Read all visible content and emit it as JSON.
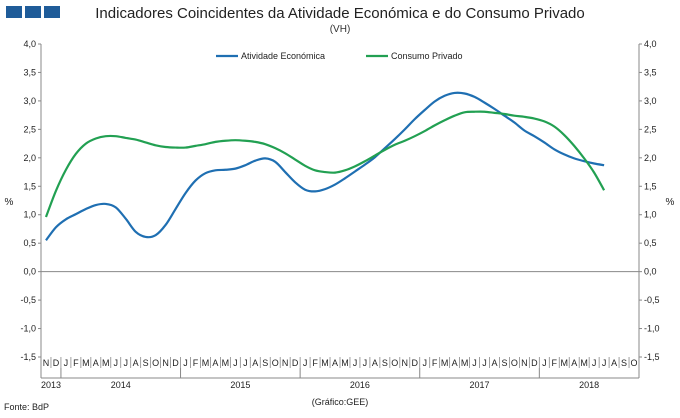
{
  "chart_data": {
    "type": "line",
    "title": "Indicadores Coincidentes da Atividade Económica e do Consumo Privado",
    "subtitle": "(VH)",
    "ylabel_left": "%",
    "ylabel_right": "%",
    "ylim": [
      -1.5,
      4.0
    ],
    "yticks": [
      "4,0",
      "3,5",
      "3,0",
      "2,5",
      "2,0",
      "1,5",
      "1,0",
      "0,5",
      "0,0",
      "-0,5",
      "-1,0",
      "-1,5"
    ],
    "month_labels": [
      "N",
      "D",
      "J",
      "F",
      "M",
      "A",
      "M",
      "J",
      "J",
      "A",
      "S",
      "O",
      "N",
      "D",
      "J",
      "F",
      "M",
      "A",
      "M",
      "J",
      "J",
      "A",
      "S",
      "O",
      "N",
      "D",
      "J",
      "F",
      "M",
      "A",
      "M",
      "J",
      "J",
      "A",
      "S",
      "O",
      "N",
      "D",
      "J",
      "F",
      "M",
      "A",
      "M",
      "J",
      "J",
      "A",
      "S",
      "O",
      "N",
      "D",
      "J",
      "F",
      "M",
      "A",
      "M",
      "J",
      "J",
      "A",
      "S",
      "O"
    ],
    "year_labels": [
      "2013",
      "2014",
      "2015",
      "2016",
      "2017",
      "2018"
    ],
    "series": [
      {
        "name": "Atividade Económica",
        "color": "#1f6fb2",
        "values": [
          0.55,
          0.78,
          0.92,
          1.01,
          1.1,
          1.17,
          1.19,
          1.13,
          0.93,
          0.7,
          0.61,
          0.64,
          0.82,
          1.1,
          1.38,
          1.6,
          1.73,
          1.78,
          1.79,
          1.81,
          1.87,
          1.95,
          1.99,
          1.93,
          1.75,
          1.57,
          1.44,
          1.41,
          1.45,
          1.53,
          1.64,
          1.76,
          1.88,
          2.01,
          2.17,
          2.33,
          2.5,
          2.68,
          2.84,
          2.99,
          3.09,
          3.14,
          3.13,
          3.07,
          2.97,
          2.86,
          2.74,
          2.62,
          2.48,
          2.38,
          2.27,
          2.15,
          2.06,
          1.99,
          1.94,
          1.9,
          1.87
        ]
      },
      {
        "name": "Consumo Privado",
        "color": "#22a052",
        "values": [
          0.96,
          1.42,
          1.79,
          2.07,
          2.25,
          2.34,
          2.38,
          2.38,
          2.35,
          2.32,
          2.27,
          2.22,
          2.19,
          2.18,
          2.18,
          2.21,
          2.24,
          2.28,
          2.3,
          2.31,
          2.3,
          2.28,
          2.24,
          2.17,
          2.08,
          1.97,
          1.86,
          1.78,
          1.75,
          1.74,
          1.78,
          1.85,
          1.94,
          2.04,
          2.14,
          2.23,
          2.3,
          2.38,
          2.47,
          2.57,
          2.66,
          2.74,
          2.8,
          2.81,
          2.81,
          2.79,
          2.77,
          2.74,
          2.72,
          2.69,
          2.64,
          2.55,
          2.4,
          2.21,
          1.99,
          1.74,
          1.43
        ]
      }
    ],
    "source": "Fonte: BdP",
    "credit": "(Gráfico:GEE)"
  }
}
